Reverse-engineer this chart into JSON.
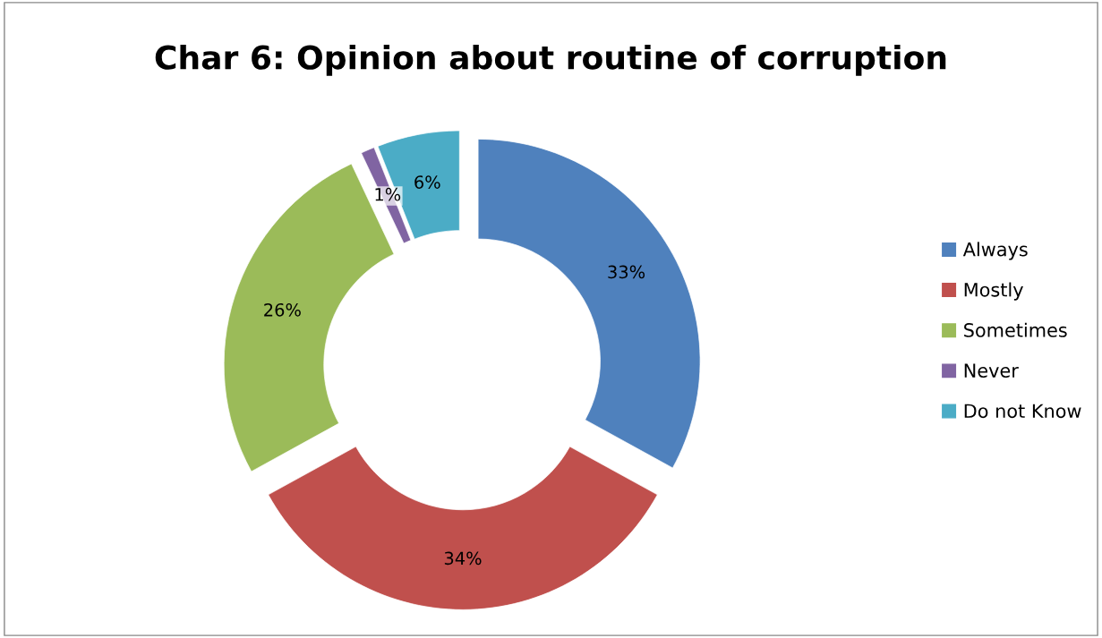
{
  "chart_data": {
    "type": "donut",
    "title": "Char 6: Opinion about routine of corruption",
    "categories": [
      "Always",
      "Mostly",
      "Sometimes",
      "Never",
      "Do not Know"
    ],
    "values": [
      33,
      34,
      26,
      1,
      6
    ],
    "value_labels": [
      "33%",
      "34%",
      "26%",
      "1%",
      "6%"
    ],
    "colors": [
      "#4f81bd",
      "#c0504d",
      "#9bbb59",
      "#8064a2",
      "#4bacc6"
    ],
    "legend": "right"
  }
}
